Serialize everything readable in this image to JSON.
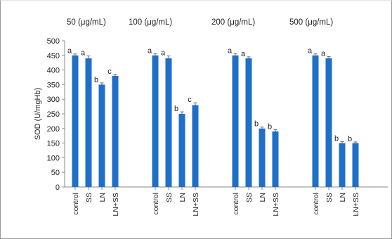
{
  "chart_data": {
    "type": "bar",
    "ylabel": "SOD (U/mgHb)",
    "ylim": [
      0,
      500
    ],
    "yticks": [
      0,
      50,
      100,
      150,
      200,
      250,
      300,
      350,
      400,
      450,
      500
    ],
    "grid": false,
    "bar_color": "#1f6fc9",
    "groups": [
      {
        "label": "50 (μg/mL)",
        "categories": [
          "control",
          "SS",
          "LN",
          "LN+SS"
        ],
        "values": [
          450,
          440,
          350,
          380
        ],
        "errors": [
          5,
          8,
          6,
          5
        ],
        "letters": [
          "a",
          "a",
          "b",
          "c"
        ]
      },
      {
        "label": "100 (μg/mL)",
        "categories": [
          "control",
          "SS",
          "LN",
          "LN+SS"
        ],
        "values": [
          450,
          440,
          250,
          280
        ],
        "errors": [
          6,
          8,
          7,
          8
        ],
        "letters": [
          "a",
          "a",
          "b",
          "c"
        ]
      },
      {
        "label": "200 (μg/mL)",
        "categories": [
          "control",
          "SS",
          "LN",
          "LN+SS"
        ],
        "values": [
          450,
          440,
          200,
          190
        ],
        "errors": [
          6,
          5,
          5,
          6
        ],
        "letters": [
          "a",
          "a",
          "b",
          "b"
        ]
      },
      {
        "label": "500 (μg/mL)",
        "categories": [
          "control",
          "SS",
          "LN",
          "LN+SS"
        ],
        "values": [
          450,
          440,
          150,
          150
        ],
        "errors": [
          5,
          6,
          5,
          4
        ],
        "letters": [
          "a",
          "a",
          "b",
          "b"
        ]
      }
    ]
  }
}
